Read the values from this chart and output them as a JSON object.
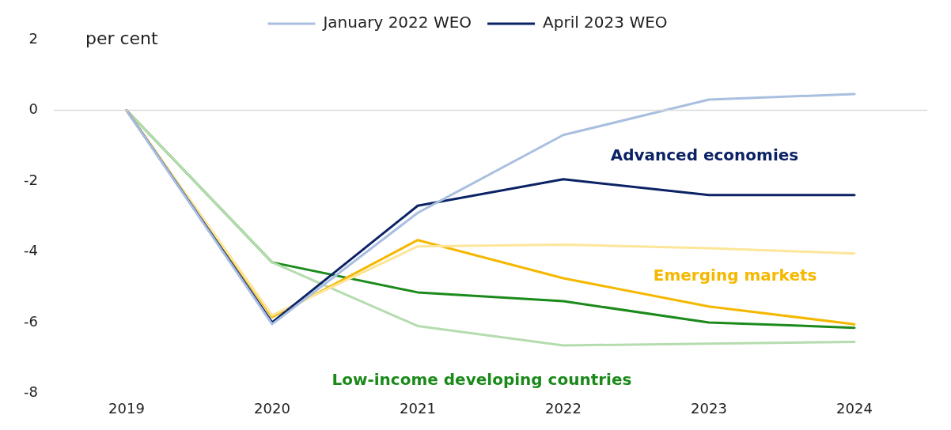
{
  "chart_data": {
    "type": "line",
    "ylabel": "per cent",
    "x": [
      2019,
      2020,
      2021,
      2022,
      2023,
      2024
    ],
    "xlim": [
      2018.5,
      2024.5
    ],
    "xticks": [
      2019,
      2020,
      2021,
      2022,
      2023,
      2024
    ],
    "ylim": [
      -8,
      2
    ],
    "yticks": [
      -8,
      -6,
      -4,
      -2,
      0,
      2
    ],
    "grid": false,
    "legend": "top",
    "marker": "none",
    "line_style": "solid",
    "ref_lines": [
      {
        "axis": "y",
        "value": 0,
        "color": "#d9d9d9"
      }
    ],
    "series": [
      {
        "name": "January 2022 WEO",
        "color": "#a9bfe0",
        "values": [
          0,
          -6.05,
          -2.9,
          -0.7,
          0.3,
          0.46
        ]
      },
      {
        "name": "April 2023 WEO",
        "color": "#0b2265",
        "values": [
          0,
          -6.0,
          -2.7,
          -1.95,
          -2.4,
          -2.4
        ]
      },
      {
        "color": "#fde59a",
        "values": [
          0,
          -5.8,
          -3.85,
          -3.8,
          -3.9,
          -4.05
        ]
      },
      {
        "color": "#f5b800",
        "values": [
          0,
          -5.85,
          -3.67,
          -4.75,
          -5.55,
          -6.05
        ]
      },
      {
        "color": "#b5dcae",
        "values": [
          0,
          -4.3,
          -6.1,
          -6.65,
          -6.6,
          -6.55
        ]
      },
      {
        "color": "#1b8a1b",
        "values": [
          0,
          -4.3,
          -5.15,
          -5.4,
          -6.0,
          -6.15
        ]
      }
    ],
    "annotations": [
      "Advanced economies",
      "Emerging markets",
      "Low-income developing countries"
    ]
  }
}
